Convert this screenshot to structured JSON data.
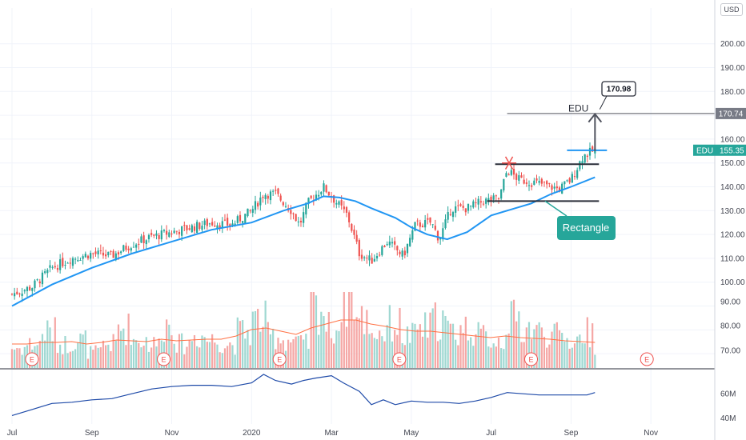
{
  "currency_button": "USD",
  "symbol": "EDU",
  "last_price": "155.35",
  "target_price_line": "170.74",
  "target_callout": "170.98",
  "pattern_label": "Rectangle",
  "earnings_marker": "E",
  "colors": {
    "up": "#26a69a",
    "down": "#ef5350",
    "ma": "#2196f3",
    "volume_ma": "#ff7043",
    "label_bg": "#26a69a",
    "target_bg": "#787b86",
    "rectangle_box": "#26a69a"
  },
  "chart_data": [
    {
      "type": "candlestick",
      "price_axis_ticks": [
        "200.00",
        "190.00",
        "180.00",
        "170.00",
        "160.00",
        "150.00",
        "140.00",
        "130.00",
        "120.00",
        "110.00",
        "100.00",
        "90.00",
        "80.00",
        "70.00"
      ],
      "price_ticks": [
        200,
        190,
        180,
        170,
        160,
        150,
        140,
        130,
        120,
        110,
        100,
        90,
        80,
        70
      ],
      "ylim": [
        64,
        215
      ],
      "time_labels": [
        "Jul",
        "Sep",
        "Nov",
        "2020",
        "Mar",
        "May",
        "Jul",
        "Sep",
        "Nov"
      ],
      "time_positions": [
        0,
        2,
        4,
        6,
        8,
        10,
        12,
        14,
        16
      ],
      "xlim": [
        -0.3,
        17.6
      ],
      "close": [
        {
          "t": 0.0,
          "v": 95
        },
        {
          "t": 0.5,
          "v": 98
        },
        {
          "t": 1.0,
          "v": 106
        },
        {
          "t": 1.5,
          "v": 110
        },
        {
          "t": 2.0,
          "v": 112
        },
        {
          "t": 2.5,
          "v": 111
        },
        {
          "t": 3.0,
          "v": 116
        },
        {
          "t": 3.5,
          "v": 119
        },
        {
          "t": 4.0,
          "v": 121
        },
        {
          "t": 4.5,
          "v": 123
        },
        {
          "t": 5.0,
          "v": 125
        },
        {
          "t": 5.5,
          "v": 124
        },
        {
          "t": 6.0,
          "v": 130
        },
        {
          "t": 6.3,
          "v": 137
        },
        {
          "t": 6.6,
          "v": 137
        },
        {
          "t": 7.0,
          "v": 130
        },
        {
          "t": 7.2,
          "v": 124
        },
        {
          "t": 7.4,
          "v": 133
        },
        {
          "t": 7.8,
          "v": 140
        },
        {
          "t": 8.1,
          "v": 134
        },
        {
          "t": 8.4,
          "v": 128
        },
        {
          "t": 8.7,
          "v": 112
        },
        {
          "t": 9.0,
          "v": 109
        },
        {
          "t": 9.4,
          "v": 117
        },
        {
          "t": 9.8,
          "v": 111
        },
        {
          "t": 10.1,
          "v": 124
        },
        {
          "t": 10.5,
          "v": 125
        },
        {
          "t": 10.7,
          "v": 118
        },
        {
          "t": 11.0,
          "v": 131
        },
        {
          "t": 11.4,
          "v": 131
        },
        {
          "t": 11.8,
          "v": 134
        },
        {
          "t": 12.2,
          "v": 135
        },
        {
          "t": 12.4,
          "v": 147
        },
        {
          "t": 12.7,
          "v": 143
        },
        {
          "t": 13.0,
          "v": 142
        },
        {
          "t": 13.3,
          "v": 141
        },
        {
          "t": 13.7,
          "v": 139
        },
        {
          "t": 14.0,
          "v": 143
        },
        {
          "t": 14.3,
          "v": 153
        },
        {
          "t": 14.6,
          "v": 155.35
        }
      ],
      "moving_average": [
        {
          "t": 0.0,
          "v": 90
        },
        {
          "t": 1.0,
          "v": 99
        },
        {
          "t": 2.0,
          "v": 106
        },
        {
          "t": 3.0,
          "v": 112
        },
        {
          "t": 4.0,
          "v": 117
        },
        {
          "t": 5.0,
          "v": 122
        },
        {
          "t": 6.0,
          "v": 125
        },
        {
          "t": 6.8,
          "v": 130
        },
        {
          "t": 7.4,
          "v": 133
        },
        {
          "t": 7.8,
          "v": 136
        },
        {
          "t": 8.2,
          "v": 135.5
        },
        {
          "t": 8.6,
          "v": 134
        },
        {
          "t": 9.0,
          "v": 131
        },
        {
          "t": 9.6,
          "v": 127
        },
        {
          "t": 10.0,
          "v": 123
        },
        {
          "t": 10.4,
          "v": 120
        },
        {
          "t": 10.9,
          "v": 118
        },
        {
          "t": 11.4,
          "v": 121
        },
        {
          "t": 12.0,
          "v": 128
        },
        {
          "t": 12.6,
          "v": 131
        },
        {
          "t": 13.0,
          "v": 133
        },
        {
          "t": 13.5,
          "v": 137
        },
        {
          "t": 14.0,
          "v": 140
        },
        {
          "t": 14.6,
          "v": 144
        }
      ],
      "volume_axis_ticks": [
        "90.00",
        "80.00",
        "70.00"
      ],
      "volume": [
        0.25,
        0.3,
        0.45,
        0.3,
        0.35,
        0.2,
        0.3,
        0.5,
        0.35,
        0.3,
        0.55,
        0.3,
        0.4,
        0.35,
        0.3,
        0.45,
        0.6,
        0.4,
        0.35,
        0.3,
        0.75,
        0.5,
        0.9,
        0.6,
        0.45,
        0.55,
        0.4,
        0.5,
        0.6,
        0.45,
        0.5,
        0.4,
        0.35,
        0.6,
        0.5,
        0.45,
        0.4,
        0.35,
        0.45,
        0.3
      ],
      "volume_ma": [
        0.3,
        0.3,
        0.32,
        0.32,
        0.33,
        0.3,
        0.32,
        0.35,
        0.34,
        0.33,
        0.36,
        0.34,
        0.35,
        0.36,
        0.36,
        0.4,
        0.48,
        0.5,
        0.46,
        0.42,
        0.5,
        0.55,
        0.6,
        0.6,
        0.55,
        0.52,
        0.48,
        0.46,
        0.46,
        0.44,
        0.42,
        0.4,
        0.38,
        0.4,
        0.38,
        0.37,
        0.36,
        0.34,
        0.33,
        0.32
      ],
      "earnings_times": [
        0.5,
        3.8,
        6.7,
        9.7,
        13.0,
        15.9
      ],
      "annotations": {
        "breakout_arrow": {
          "t": 14.6,
          "from": 155,
          "to": 170.5
        },
        "resistance_line": {
          "t0": 12.1,
          "t1": 14.7,
          "v": 149.5
        },
        "support_line": {
          "t0": 11.9,
          "t1": 14.7,
          "v": 134
        },
        "upper_blue_line": {
          "t0": 13.9,
          "t1": 14.9,
          "v": 155.3
        },
        "target_line": {
          "t0": 12.4,
          "v": 170.74
        },
        "star_marker": {
          "t": 12.45,
          "v": 150
        }
      }
    },
    {
      "type": "line",
      "indicator_axis_ticks": [
        "60M",
        "40M"
      ],
      "ticks": [
        60,
        40
      ],
      "ylim": [
        35,
        80
      ],
      "x": [
        0.0,
        0.5,
        1.0,
        1.5,
        2.0,
        2.5,
        3.0,
        3.5,
        4.0,
        4.5,
        5.0,
        5.5,
        6.0,
        6.3,
        6.6,
        7.0,
        7.3,
        7.6,
        8.0,
        8.3,
        8.7,
        9.0,
        9.3,
        9.6,
        10.0,
        10.4,
        10.8,
        11.2,
        11.6,
        12.0,
        12.4,
        12.8,
        13.2,
        13.6,
        14.0,
        14.4,
        14.6
      ],
      "y": [
        42,
        47,
        52,
        53,
        55,
        56,
        60,
        64,
        66,
        67,
        67,
        66,
        69,
        76,
        71,
        68,
        71,
        73,
        75,
        69,
        62,
        51,
        55,
        51,
        54,
        53,
        53,
        52,
        54,
        57,
        61,
        60,
        59,
        59,
        59,
        59,
        61
      ]
    }
  ]
}
